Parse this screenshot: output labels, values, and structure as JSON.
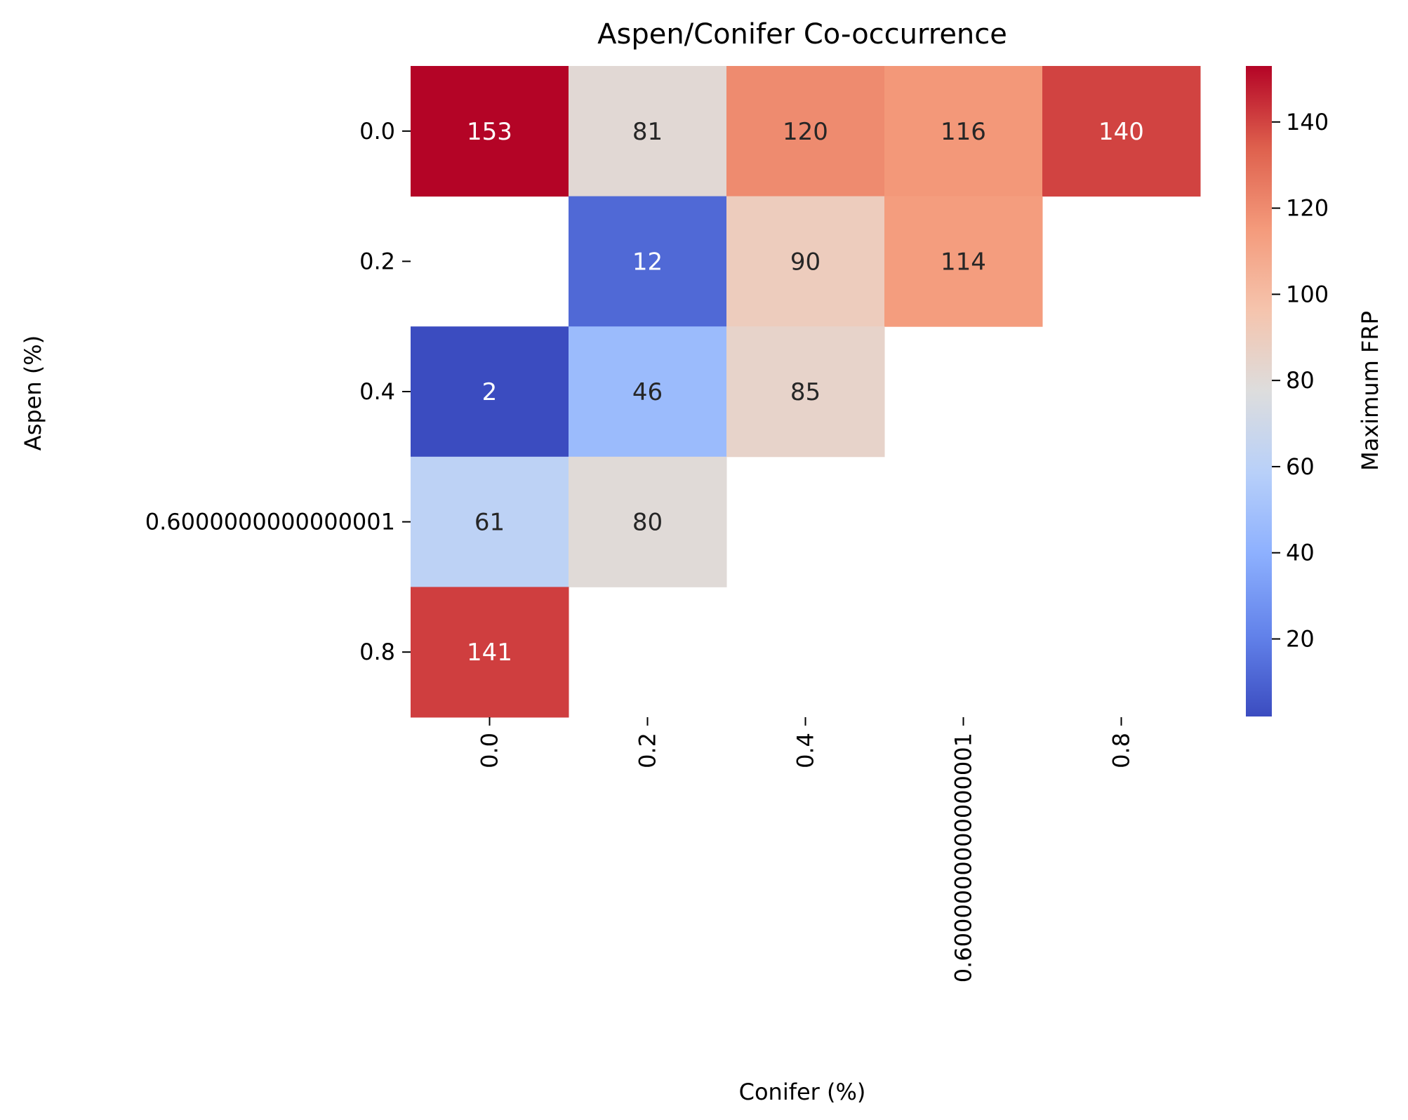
{
  "chart_data": {
    "type": "heatmap",
    "title": "Aspen/Conifer Co-occurrence",
    "xlabel": "Conifer (%)",
    "ylabel": "Aspen (%)",
    "x_categories": [
      "0.0",
      "0.2",
      "0.4",
      "0.6000000000000001",
      "0.8"
    ],
    "y_categories": [
      "0.0",
      "0.2",
      "0.4",
      "0.6000000000000001",
      "0.8"
    ],
    "values": [
      [
        153,
        81,
        120,
        116,
        140
      ],
      [
        null,
        12,
        90,
        114,
        null
      ],
      [
        2,
        46,
        85,
        null,
        null
      ],
      [
        61,
        80,
        null,
        null,
        null
      ],
      [
        141,
        null,
        null,
        null,
        null
      ]
    ],
    "colormap": "coolwarm",
    "vmin": 2,
    "vmax": 153,
    "colorbar": {
      "label": "Maximum FRP",
      "ticks": [
        20,
        40,
        60,
        80,
        100,
        120,
        140
      ],
      "tick_labels": [
        "20",
        "40",
        "60",
        "80",
        "100",
        "120",
        "140"
      ]
    }
  }
}
